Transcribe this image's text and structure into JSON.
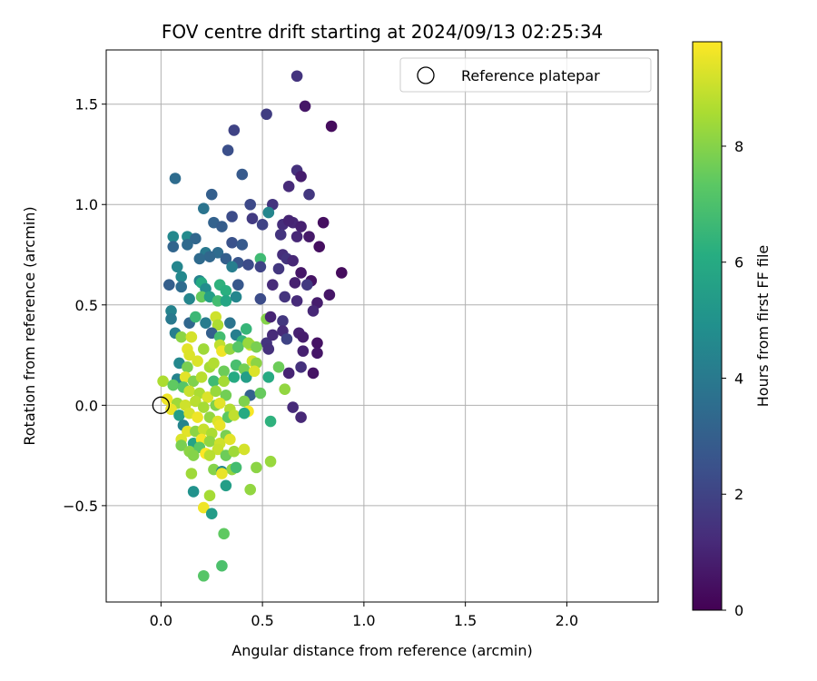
{
  "chart_data": {
    "type": "scatter",
    "title": "FOV centre drift starting at 2024/09/13 02:25:34",
    "xlabel": "Angular distance from reference (arcmin)",
    "ylabel": "Rotation from reference (arcmin)",
    "xlim": [
      -0.27,
      2.45
    ],
    "ylim": [
      -0.98,
      1.77
    ],
    "xticks": [
      0.0,
      0.5,
      1.0,
      1.5,
      2.0
    ],
    "xtick_labels": [
      "0.0",
      "0.5",
      "1.0",
      "1.5",
      "2.0"
    ],
    "yticks": [
      -0.5,
      0.0,
      0.5,
      1.0,
      1.5
    ],
    "ytick_labels": [
      "−0.5",
      "0.0",
      "0.5",
      "1.0",
      "1.5"
    ],
    "grid": true,
    "legend": {
      "position": "top-right",
      "label": "Reference platepar"
    },
    "reference_point": {
      "x": 0.0,
      "y": 0.0
    },
    "colorbar": {
      "label": "Hours from first FF file",
      "range": [
        0,
        9.8
      ],
      "ticks": [
        0,
        2,
        4,
        6,
        8
      ],
      "tick_labels": [
        "0",
        "2",
        "4",
        "6",
        "8"
      ],
      "colormap": "viridis",
      "colors": [
        "#440154",
        "#472c7a",
        "#3b518b",
        "#2c718e",
        "#21908d",
        "#27ad81",
        "#5cc863",
        "#aadc32",
        "#fde725"
      ]
    },
    "points": [
      [
        0.67,
        1.64,
        1.5
      ],
      [
        0.71,
        1.49,
        0.6
      ],
      [
        0.52,
        1.45,
        1.8
      ],
      [
        0.84,
        1.39,
        0.3
      ],
      [
        0.36,
        1.37,
        2.0
      ],
      [
        0.33,
        1.27,
        2.4
      ],
      [
        0.67,
        1.17,
        1.4
      ],
      [
        0.69,
        1.14,
        0.8
      ],
      [
        0.4,
        1.15,
        2.8
      ],
      [
        0.07,
        1.13,
        3.5
      ],
      [
        0.73,
        1.05,
        1.6
      ],
      [
        0.63,
        1.09,
        1.2
      ],
      [
        0.25,
        1.05,
        3.0
      ],
      [
        0.44,
        1.0,
        2.2
      ],
      [
        0.55,
        1.0,
        1.5
      ],
      [
        0.21,
        0.98,
        3.8
      ],
      [
        0.53,
        0.96,
        4.5
      ],
      [
        0.35,
        0.94,
        2.3
      ],
      [
        0.26,
        0.91,
        3.1
      ],
      [
        0.6,
        0.9,
        1.3
      ],
      [
        0.3,
        0.89,
        2.9
      ],
      [
        0.5,
        0.9,
        2.0
      ],
      [
        0.65,
        0.91,
        1.1
      ],
      [
        0.69,
        0.89,
        0.9
      ],
      [
        0.8,
        0.91,
        0.4
      ],
      [
        0.45,
        0.93,
        1.7
      ],
      [
        0.63,
        0.92,
        1.0
      ],
      [
        0.06,
        0.84,
        4.6
      ],
      [
        0.13,
        0.84,
        4.7
      ],
      [
        0.17,
        0.83,
        3.3
      ],
      [
        0.06,
        0.79,
        3.2
      ],
      [
        0.13,
        0.8,
        3.4
      ],
      [
        0.35,
        0.81,
        2.5
      ],
      [
        0.4,
        0.8,
        2.8
      ],
      [
        0.59,
        0.85,
        1.5
      ],
      [
        0.67,
        0.84,
        1.1
      ],
      [
        0.73,
        0.84,
        0.7
      ],
      [
        0.78,
        0.79,
        0.4
      ],
      [
        0.22,
        0.76,
        4.0
      ],
      [
        0.28,
        0.76,
        3.5
      ],
      [
        0.24,
        0.74,
        3.3
      ],
      [
        0.19,
        0.73,
        3.4
      ],
      [
        0.32,
        0.73,
        3.0
      ],
      [
        0.38,
        0.71,
        2.6
      ],
      [
        0.43,
        0.7,
        2.3
      ],
      [
        0.35,
        0.69,
        4.2
      ],
      [
        0.49,
        0.73,
        6.7
      ],
      [
        0.6,
        0.75,
        1.3
      ],
      [
        0.62,
        0.73,
        1.5
      ],
      [
        0.65,
        0.72,
        1.1
      ],
      [
        0.08,
        0.69,
        4.5
      ],
      [
        0.49,
        0.69,
        2.0
      ],
      [
        0.58,
        0.68,
        1.6
      ],
      [
        0.69,
        0.66,
        0.6
      ],
      [
        0.74,
        0.62,
        0.5
      ],
      [
        0.89,
        0.66,
        0.3
      ],
      [
        0.1,
        0.64,
        4.6
      ],
      [
        0.19,
        0.62,
        4.4
      ],
      [
        0.2,
        0.61,
        6.0
      ],
      [
        0.22,
        0.58,
        4.8
      ],
      [
        0.29,
        0.6,
        6.3
      ],
      [
        0.32,
        0.57,
        6.2
      ],
      [
        0.38,
        0.6,
        2.7
      ],
      [
        0.55,
        0.6,
        1.2
      ],
      [
        0.66,
        0.61,
        0.9
      ],
      [
        0.72,
        0.6,
        1.7
      ],
      [
        0.04,
        0.6,
        3.0
      ],
      [
        0.1,
        0.59,
        3.5
      ],
      [
        0.14,
        0.53,
        4.5
      ],
      [
        0.2,
        0.54,
        7.5
      ],
      [
        0.24,
        0.54,
        5.5
      ],
      [
        0.28,
        0.52,
        6.8
      ],
      [
        0.32,
        0.52,
        5.8
      ],
      [
        0.37,
        0.54,
        4.5
      ],
      [
        0.49,
        0.53,
        2.3
      ],
      [
        0.61,
        0.54,
        1.5
      ],
      [
        0.67,
        0.52,
        1.2
      ],
      [
        0.77,
        0.51,
        0.8
      ],
      [
        0.83,
        0.55,
        0.6
      ],
      [
        0.05,
        0.47,
        4.4
      ],
      [
        0.05,
        0.43,
        4.0
      ],
      [
        0.14,
        0.41,
        3.3
      ],
      [
        0.17,
        0.44,
        6.6
      ],
      [
        0.22,
        0.41,
        4.1
      ],
      [
        0.27,
        0.44,
        9.1
      ],
      [
        0.28,
        0.4,
        8.6
      ],
      [
        0.34,
        0.41,
        3.8
      ],
      [
        0.42,
        0.38,
        6.5
      ],
      [
        0.52,
        0.43,
        8.0
      ],
      [
        0.54,
        0.44,
        1.0
      ],
      [
        0.6,
        0.42,
        1.6
      ],
      [
        0.6,
        0.37,
        1.2
      ],
      [
        0.68,
        0.36,
        0.9
      ],
      [
        0.75,
        0.47,
        1.1
      ],
      [
        0.07,
        0.36,
        4.2
      ],
      [
        0.1,
        0.34,
        8.1
      ],
      [
        0.15,
        0.34,
        9.2
      ],
      [
        0.25,
        0.36,
        3.0
      ],
      [
        0.29,
        0.34,
        6.8
      ],
      [
        0.37,
        0.35,
        4.2
      ],
      [
        0.4,
        0.32,
        6.4
      ],
      [
        0.44,
        0.3,
        9.0
      ],
      [
        0.52,
        0.31,
        1.5
      ],
      [
        0.55,
        0.35,
        1.2
      ],
      [
        0.62,
        0.33,
        2.0
      ],
      [
        0.7,
        0.34,
        0.8
      ],
      [
        0.77,
        0.31,
        0.5
      ],
      [
        0.13,
        0.28,
        9.4
      ],
      [
        0.14,
        0.25,
        9.3
      ],
      [
        0.21,
        0.28,
        8.4
      ],
      [
        0.29,
        0.3,
        8.9
      ],
      [
        0.3,
        0.27,
        9.6
      ],
      [
        0.34,
        0.28,
        8.2
      ],
      [
        0.38,
        0.29,
        7.2
      ],
      [
        0.43,
        0.31,
        8.3
      ],
      [
        0.47,
        0.29,
        7.8
      ],
      [
        0.53,
        0.28,
        1.4
      ],
      [
        0.7,
        0.27,
        0.9
      ],
      [
        0.77,
        0.26,
        0.6
      ],
      [
        0.09,
        0.21,
        4.6
      ],
      [
        0.13,
        0.19,
        7.8
      ],
      [
        0.18,
        0.22,
        9.3
      ],
      [
        0.24,
        0.19,
        8.5
      ],
      [
        0.26,
        0.21,
        8.7
      ],
      [
        0.31,
        0.17,
        7.6
      ],
      [
        0.37,
        0.2,
        6.9
      ],
      [
        0.41,
        0.18,
        7.7
      ],
      [
        0.45,
        0.22,
        9.2
      ],
      [
        0.47,
        0.21,
        8.1
      ],
      [
        0.53,
        0.14,
        6.0
      ],
      [
        0.58,
        0.19,
        7.6
      ],
      [
        0.63,
        0.16,
        1.0
      ],
      [
        0.69,
        0.19,
        1.4
      ],
      [
        0.75,
        0.16,
        0.5
      ],
      [
        0.08,
        0.13,
        4.4
      ],
      [
        0.12,
        0.14,
        9.4
      ],
      [
        0.16,
        0.12,
        7.9
      ],
      [
        0.2,
        0.14,
        8.8
      ],
      [
        0.26,
        0.12,
        6.7
      ],
      [
        0.31,
        0.12,
        8.5
      ],
      [
        0.36,
        0.14,
        6.0
      ],
      [
        0.42,
        0.14,
        5.5
      ],
      [
        0.46,
        0.17,
        9.3
      ],
      [
        0.61,
        0.08,
        8.2
      ],
      [
        0.01,
        0.12,
        8.6
      ],
      [
        0.06,
        0.1,
        7.4
      ],
      [
        0.11,
        0.09,
        7.2
      ],
      [
        0.14,
        0.07,
        9.0
      ],
      [
        0.19,
        0.06,
        8.6
      ],
      [
        0.23,
        0.04,
        9.3
      ],
      [
        0.27,
        0.07,
        8.3
      ],
      [
        0.32,
        0.05,
        7.7
      ],
      [
        0.44,
        0.05,
        3.1
      ],
      [
        0.49,
        0.06,
        7.5
      ],
      [
        0.03,
        0.03,
        9.6
      ],
      [
        0.08,
        0.01,
        8.4
      ],
      [
        0.12,
        0.0,
        9.1
      ],
      [
        0.17,
        0.02,
        8.8
      ],
      [
        0.21,
        -0.01,
        8.5
      ],
      [
        0.27,
        0.0,
        7.9
      ],
      [
        0.29,
        0.01,
        9.4
      ],
      [
        0.34,
        -0.02,
        8.7
      ],
      [
        0.41,
        0.02,
        7.9
      ],
      [
        0.43,
        -0.03,
        9.7
      ],
      [
        0.05,
        -0.02,
        9.5
      ],
      [
        0.09,
        -0.05,
        5.5
      ],
      [
        0.14,
        -0.04,
        9.2
      ],
      [
        0.18,
        -0.06,
        9.6
      ],
      [
        0.24,
        -0.06,
        8.2
      ],
      [
        0.28,
        -0.08,
        9.3
      ],
      [
        0.33,
        -0.06,
        7.3
      ],
      [
        0.36,
        -0.05,
        8.9
      ],
      [
        0.41,
        -0.04,
        6.0
      ],
      [
        0.54,
        -0.08,
        6.3
      ],
      [
        0.65,
        -0.01,
        1.2
      ],
      [
        0.69,
        -0.06,
        1.1
      ],
      [
        0.11,
        -0.1,
        4.4
      ],
      [
        0.13,
        -0.13,
        9.4
      ],
      [
        0.17,
        -0.13,
        8.1
      ],
      [
        0.21,
        -0.12,
        9.0
      ],
      [
        0.25,
        -0.14,
        8.6
      ],
      [
        0.29,
        -0.1,
        9.5
      ],
      [
        0.32,
        -0.15,
        7.8
      ],
      [
        0.1,
        -0.17,
        9.3
      ],
      [
        0.16,
        -0.19,
        5.7
      ],
      [
        0.2,
        -0.17,
        9.7
      ],
      [
        0.24,
        -0.18,
        8.2
      ],
      [
        0.29,
        -0.19,
        9.1
      ],
      [
        0.34,
        -0.17,
        9.4
      ],
      [
        0.1,
        -0.2,
        7.8
      ],
      [
        0.14,
        -0.23,
        8.1
      ],
      [
        0.19,
        -0.21,
        7.3
      ],
      [
        0.22,
        -0.24,
        9.8
      ],
      [
        0.28,
        -0.22,
        9.0
      ],
      [
        0.32,
        -0.25,
        7.6
      ],
      [
        0.36,
        -0.23,
        8.4
      ],
      [
        0.41,
        -0.22,
        9.2
      ],
      [
        0.24,
        -0.25,
        8.8
      ],
      [
        0.16,
        -0.25,
        8.0
      ],
      [
        0.54,
        -0.28,
        8.3
      ],
      [
        0.26,
        -0.32,
        8.0
      ],
      [
        0.3,
        -0.33,
        4.6
      ],
      [
        0.35,
        -0.32,
        8.2
      ],
      [
        0.47,
        -0.31,
        8.1
      ],
      [
        0.15,
        -0.34,
        8.4
      ],
      [
        0.3,
        -0.34,
        9.5
      ],
      [
        0.37,
        -0.31,
        6.8
      ],
      [
        0.32,
        -0.4,
        5.5
      ],
      [
        0.16,
        -0.43,
        5.0
      ],
      [
        0.24,
        -0.45,
        8.5
      ],
      [
        0.44,
        -0.42,
        8.2
      ],
      [
        0.21,
        -0.51,
        9.6
      ],
      [
        0.25,
        -0.54,
        5.4
      ],
      [
        0.31,
        -0.64,
        7.4
      ],
      [
        0.3,
        -0.8,
        7.0
      ],
      [
        0.21,
        -0.85,
        7.2
      ]
    ]
  }
}
